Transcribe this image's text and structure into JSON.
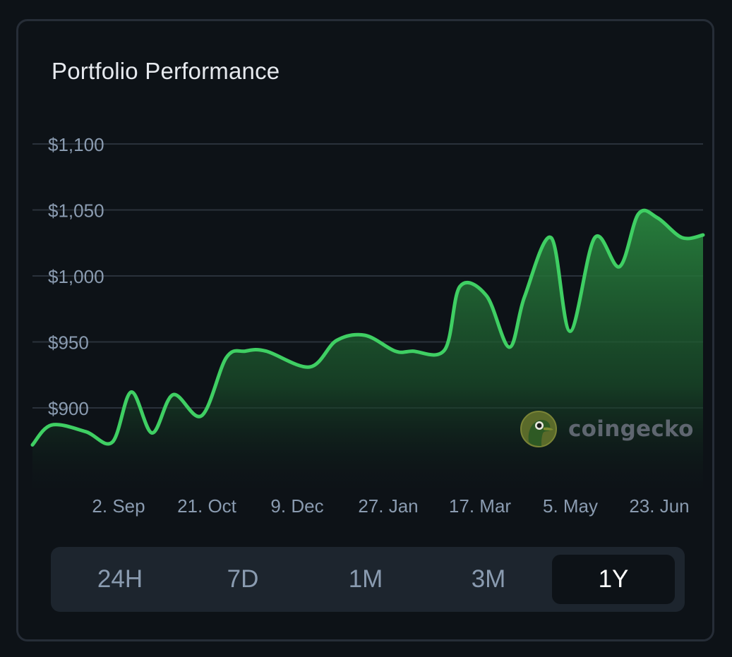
{
  "card": {
    "title": "Portfolio Performance"
  },
  "colors": {
    "background": "#0d1217",
    "line": "#3fcf63",
    "area_top": "#2a8a40",
    "grid": "#2a313b",
    "axis_text": "#8a9bb0",
    "active_tab_bg": "#0d1217",
    "tab_bar_bg": "#1d252e"
  },
  "watermark": {
    "text": "coingecko",
    "icon": "coingecko-gecko-logo"
  },
  "ranges": {
    "items": [
      {
        "label": "24H",
        "active": false
      },
      {
        "label": "7D",
        "active": false
      },
      {
        "label": "1M",
        "active": false
      },
      {
        "label": "3M",
        "active": false
      },
      {
        "label": "1Y",
        "active": true
      }
    ]
  },
  "chart_data": {
    "type": "area",
    "title": "Portfolio Performance",
    "xlabel": "",
    "ylabel": "",
    "ylim": [
      850,
      1100
    ],
    "yticks": [
      900,
      950,
      1000,
      1050,
      1100
    ],
    "ytick_labels": [
      "$900",
      "$950",
      "$1,000",
      "$1,050",
      "$1,100"
    ],
    "xtick_labels": [
      "2. Sep",
      "21. Oct",
      "9. Dec",
      "27. Jan",
      "17. Mar",
      "5. May",
      "23. Jun"
    ],
    "grid": true,
    "legend": "none",
    "series": [
      {
        "x": [
          "2024-07-22",
          "2024-08-01",
          "2024-08-19",
          "2024-09-02",
          "2024-09-12",
          "2024-09-23",
          "2024-10-04",
          "2024-10-19",
          "2024-11-01",
          "2024-11-11",
          "2024-11-22",
          "2024-12-15",
          "2024-12-29",
          "2025-01-13",
          "2025-01-29",
          "2025-02-07",
          "2025-02-24",
          "2025-03-04",
          "2025-03-18",
          "2025-03-30",
          "2025-04-07",
          "2025-04-21",
          "2025-05-01",
          "2025-05-14",
          "2025-05-27",
          "2025-06-06",
          "2025-06-16",
          "2025-06-29",
          "2025-07-10"
        ],
        "values": [
          872,
          887,
          882,
          874,
          912,
          881,
          910,
          894,
          938,
          943,
          943,
          931,
          951,
          955,
          943,
          943,
          944,
          992,
          985,
          946,
          984,
          1029,
          958,
          1029,
          1007,
          1047,
          1044,
          1029,
          1031
        ]
      }
    ]
  }
}
